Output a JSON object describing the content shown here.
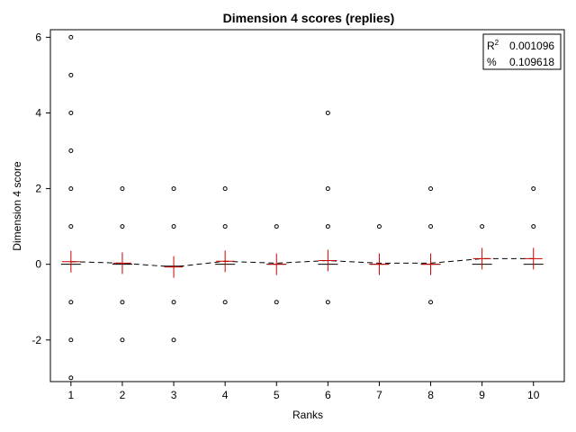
{
  "chart_data": {
    "type": "scatter",
    "title": "Dimension 4 scores (replies)",
    "xlabel": "Ranks",
    "ylabel": "Dimension 4 score",
    "xlim": [
      0.6,
      10.6
    ],
    "ylim": [
      -3.1,
      6.2
    ],
    "x_ticks": [
      1,
      2,
      3,
      4,
      5,
      6,
      7,
      8,
      9,
      10
    ],
    "y_ticks": [
      -2,
      0,
      2,
      4,
      6
    ],
    "grid": false,
    "legend": "none",
    "stats": {
      "r2_label": "R",
      "r2_superscript": "2",
      "r2_value": "0.001096",
      "pct_label": "%",
      "pct_value": "0.109618"
    },
    "series": [
      {
        "kind": "points",
        "color": "#000000",
        "marker": "open-circle",
        "points": [
          {
            "x": 1,
            "y": 6
          },
          {
            "x": 1,
            "y": 5
          },
          {
            "x": 1,
            "y": 4
          },
          {
            "x": 1,
            "y": 3
          },
          {
            "x": 1,
            "y": 2
          },
          {
            "x": 1,
            "y": 1
          },
          {
            "x": 1,
            "y": -1
          },
          {
            "x": 1,
            "y": -2
          },
          {
            "x": 1,
            "y": -3
          },
          {
            "x": 2,
            "y": 2
          },
          {
            "x": 2,
            "y": 1
          },
          {
            "x": 2,
            "y": -1
          },
          {
            "x": 2,
            "y": -2
          },
          {
            "x": 3,
            "y": 2
          },
          {
            "x": 3,
            "y": 1
          },
          {
            "x": 3,
            "y": -1
          },
          {
            "x": 3,
            "y": -2
          },
          {
            "x": 4,
            "y": 2
          },
          {
            "x": 4,
            "y": 1
          },
          {
            "x": 4,
            "y": -1
          },
          {
            "x": 5,
            "y": 1
          },
          {
            "x": 5,
            "y": -1
          },
          {
            "x": 6,
            "y": 4
          },
          {
            "x": 6,
            "y": 2
          },
          {
            "x": 6,
            "y": 1
          },
          {
            "x": 6,
            "y": -1
          },
          {
            "x": 7,
            "y": 1
          },
          {
            "x": 8,
            "y": 2
          },
          {
            "x": 8,
            "y": 1
          },
          {
            "x": 8,
            "y": -1
          },
          {
            "x": 9,
            "y": 1
          },
          {
            "x": 10,
            "y": 2
          },
          {
            "x": 10,
            "y": 1
          }
        ]
      },
      {
        "kind": "mean-markers",
        "color": "#cc0000",
        "marker": "plus",
        "points": [
          {
            "x": 1,
            "y": 0.07
          },
          {
            "x": 2,
            "y": 0.03
          },
          {
            "x": 3,
            "y": -0.07
          },
          {
            "x": 4,
            "y": 0.08
          },
          {
            "x": 5,
            "y": 0.0
          },
          {
            "x": 6,
            "y": 0.1
          },
          {
            "x": 7,
            "y": 0.0
          },
          {
            "x": 8,
            "y": 0.0
          },
          {
            "x": 9,
            "y": 0.15
          },
          {
            "x": 10,
            "y": 0.15
          }
        ]
      },
      {
        "kind": "median-bars",
        "color": "#000000",
        "marker": "hbar",
        "points": [
          {
            "x": 1,
            "y": 0
          },
          {
            "x": 2,
            "y": 0
          },
          {
            "x": 3,
            "y": -0.05
          },
          {
            "x": 4,
            "y": 0
          },
          {
            "x": 5,
            "y": 0
          },
          {
            "x": 6,
            "y": 0
          },
          {
            "x": 7,
            "y": 0
          },
          {
            "x": 8,
            "y": 0
          },
          {
            "x": 9,
            "y": 0
          },
          {
            "x": 10,
            "y": 0
          }
        ]
      },
      {
        "kind": "trend-line",
        "color": "#000000",
        "style": "dashed",
        "points": [
          {
            "x": 1,
            "y": 0.07
          },
          {
            "x": 2,
            "y": 0.03
          },
          {
            "x": 3,
            "y": -0.07
          },
          {
            "x": 4,
            "y": 0.08
          },
          {
            "x": 5,
            "y": 0.03
          },
          {
            "x": 6,
            "y": 0.1
          },
          {
            "x": 7,
            "y": 0.03
          },
          {
            "x": 8,
            "y": 0.03
          },
          {
            "x": 9,
            "y": 0.15
          },
          {
            "x": 10,
            "y": 0.15
          }
        ]
      }
    ]
  }
}
